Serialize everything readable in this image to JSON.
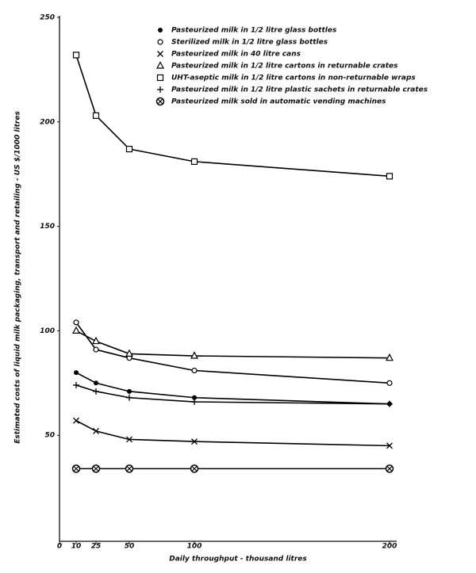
{
  "chart_data": {
    "type": "line",
    "y_label": "Estimated costs of liquid milk packaging, transport and retailing - US $/1000 litres",
    "x_label": "Daily throughput - thousand litres",
    "x": [
      10,
      25,
      50,
      100,
      200
    ],
    "xlim": [
      0,
      200
    ],
    "xticks": [
      0,
      10,
      25,
      50,
      100,
      200
    ],
    "ylim": [
      0,
      250
    ],
    "yticks": [
      50,
      100,
      150,
      200,
      250
    ],
    "series": [
      {
        "name": "Pasteurized milk in 1/2 litre glass bottles",
        "color": "#000000",
        "marker": "filled-circle",
        "values": [
          80,
          75,
          71,
          68,
          65
        ]
      },
      {
        "name": "Sterilized milk in 1/2 litre glass bottles",
        "color": "#000000",
        "marker": "open-circle",
        "values": [
          104,
          91,
          87,
          81,
          75
        ]
      },
      {
        "name": "Pasteurized milk in 40 litre cans",
        "color": "#000000",
        "marker": "x",
        "values": [
          57,
          52,
          48,
          47,
          45
        ]
      },
      {
        "name": "Pasteurized milk in 1/2 litre cartons in returnable crates",
        "color": "#000000",
        "marker": "triangle",
        "values": [
          100,
          95,
          89,
          88,
          87
        ]
      },
      {
        "name": "UHT-aseptic milk in 1/2 litre cartons in non-returnable wraps",
        "color": "#000000",
        "marker": "square",
        "values": [
          232,
          203,
          187,
          181,
          174
        ]
      },
      {
        "name": "Pasteurized milk in 1/2 litre plastic sachets in returnable crates",
        "color": "#000000",
        "marker": "plus",
        "values": [
          74,
          71,
          68,
          66,
          65
        ]
      },
      {
        "name": "Pasteurized milk sold in automatic vending machines",
        "color": "#000000",
        "marker": "circled-x",
        "values": [
          34,
          34,
          34,
          34,
          34
        ]
      }
    ]
  }
}
